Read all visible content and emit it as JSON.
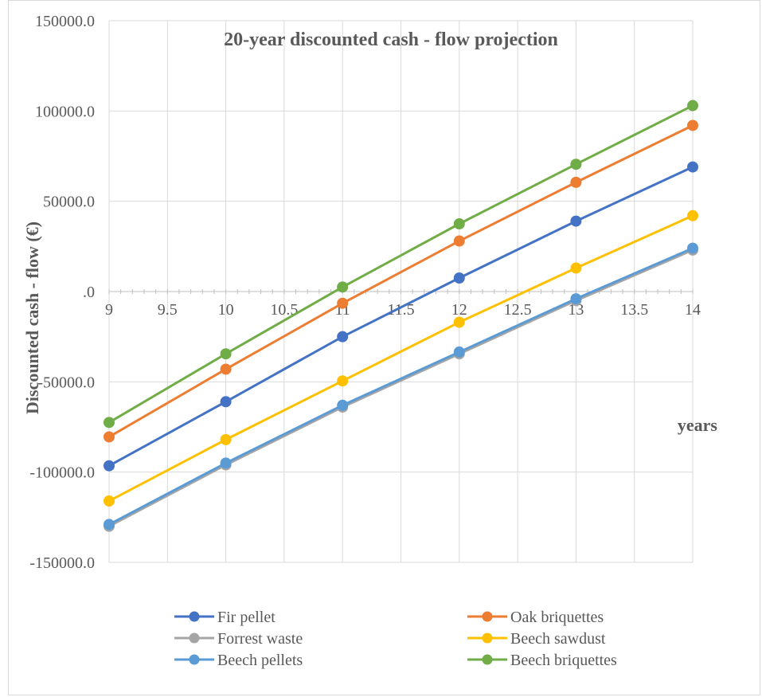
{
  "chart_data": {
    "type": "line",
    "title": "20-year discounted cash - flow projection",
    "xlabel": "years",
    "ylabel": "Discounted cash - flow (€)",
    "x": [
      9,
      10,
      11,
      12,
      13,
      14
    ],
    "xlim": [
      9,
      14
    ],
    "ylim": [
      -150000,
      150000
    ],
    "x_ticks": [
      "9",
      "9.5",
      "10",
      "10.5",
      "11",
      "11.5",
      "12",
      "12.5",
      "13",
      "13.5",
      "14"
    ],
    "y_ticks": [
      "150000.0",
      "100000.0",
      "50000.0",
      ".0",
      "-50000.0",
      "-100000.0",
      "-150000.0"
    ],
    "grid": true,
    "legend_position": "bottom",
    "series": [
      {
        "name": "Fir pellet",
        "color": "#4472C4",
        "values": [
          -96500,
          -61000,
          -25000,
          7500,
          39000,
          69000
        ]
      },
      {
        "name": "Oak briquettes",
        "color": "#ED7D31",
        "values": [
          -80500,
          -43000,
          -6500,
          28000,
          60500,
          92000
        ]
      },
      {
        "name": "Forrest waste",
        "color": "#A5A5A5",
        "values": [
          -130000,
          -96000,
          -64000,
          -34500,
          -5000,
          23000
        ]
      },
      {
        "name": "Beech sawdust",
        "color": "#FFC000",
        "values": [
          -116000,
          -82000,
          -49500,
          -17000,
          13000,
          42000
        ]
      },
      {
        "name": "Beech pellets",
        "color": "#5B9BD5",
        "values": [
          -129000,
          -95000,
          -63000,
          -33500,
          -4000,
          24000
        ]
      },
      {
        "name": "Beech briquettes",
        "color": "#70AD47",
        "values": [
          -72500,
          -34500,
          2500,
          37500,
          70500,
          103000
        ]
      }
    ]
  }
}
